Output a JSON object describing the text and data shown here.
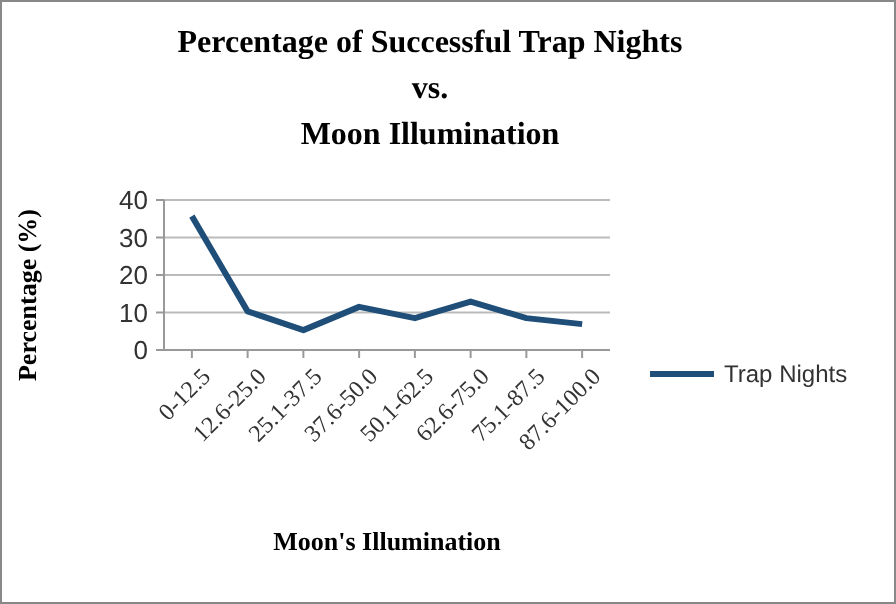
{
  "chart_data": {
    "type": "line",
    "title": "Percentage of Successful Trap Nights\nvs.\nMoon Illumination",
    "xlabel": "Moon's Illumination",
    "ylabel": "Percentage (%)",
    "categories": [
      "0-12.5",
      "12.6-25.0",
      "25.1-37.5",
      "37.6-50.0",
      "50.1-62.5",
      "62.6-75.0",
      "75.1-87.5",
      "87.6-100.0"
    ],
    "series": [
      {
        "name": "Trap Nights",
        "color": "#1f4e79",
        "values": [
          35.7,
          10.3,
          5.3,
          11.5,
          8.5,
          12.9,
          8.5,
          6.9
        ]
      }
    ],
    "ylim": [
      0,
      40
    ],
    "yticks": [
      0,
      10,
      20,
      30,
      40
    ],
    "grid": "y",
    "legend": "right",
    "marker": "none"
  }
}
